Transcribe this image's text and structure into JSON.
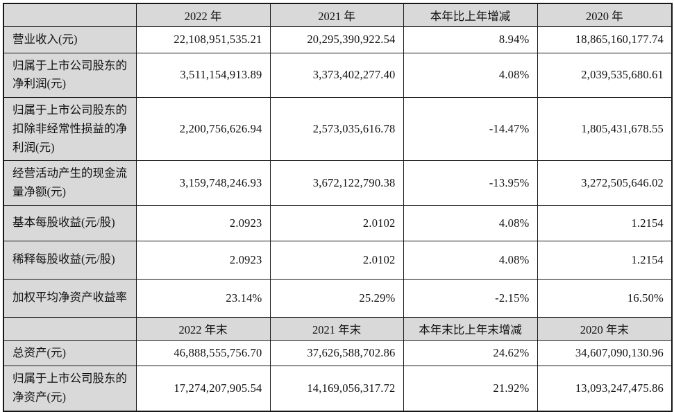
{
  "colors": {
    "header_background": "#d9d9d9",
    "label_background": "#d9d9d9",
    "border": "#161616",
    "text": "#111111",
    "page_background": "#ffffff"
  },
  "table": {
    "sections": [
      {
        "headers": [
          "",
          "2022 年",
          "2021 年",
          "本年比上年增减",
          "2020 年"
        ],
        "rows": [
          {
            "label": "营业收入(元)",
            "values": [
              "22,108,951,535.21",
              "20,295,390,922.54",
              "8.94%",
              "18,865,160,177.74"
            ]
          },
          {
            "label": "归属于上市公司股东的净利润(元)",
            "values": [
              "3,511,154,913.89",
              "3,373,402,277.40",
              "4.08%",
              "2,039,535,680.61"
            ]
          },
          {
            "label": "归属于上市公司股东的扣除非经常性损益的净利润(元)",
            "values": [
              "2,200,756,626.94",
              "2,573,035,616.78",
              "-14.47%",
              "1,805,431,678.55"
            ]
          },
          {
            "label": "经营活动产生的现金流量净额(元)",
            "values": [
              "3,159,748,246.93",
              "3,672,122,790.38",
              "-13.95%",
              "3,272,505,646.02"
            ]
          },
          {
            "label": "基本每股收益(元/股)",
            "values": [
              "2.0923",
              "2.0102",
              "4.08%",
              "1.2154"
            ]
          },
          {
            "label": "稀释每股收益(元/股)",
            "values": [
              "2.0923",
              "2.0102",
              "4.08%",
              "1.2154"
            ]
          },
          {
            "label": "加权平均净资产收益率",
            "values": [
              "23.14%",
              "25.29%",
              "-2.15%",
              "16.50%"
            ]
          }
        ]
      },
      {
        "headers": [
          "",
          "2022 年末",
          "2021 年末",
          "本年末比上年末增减",
          "2020 年末"
        ],
        "rows": [
          {
            "label": "总资产(元)",
            "values": [
              "46,888,555,756.70",
              "37,626,588,702.86",
              "24.62%",
              "34,607,090,130.96"
            ]
          },
          {
            "label": "归属于上市公司股东的净资产(元)",
            "values": [
              "17,274,207,905.54",
              "14,169,056,317.72",
              "21.92%",
              "13,093,247,475.86"
            ]
          }
        ]
      }
    ]
  }
}
